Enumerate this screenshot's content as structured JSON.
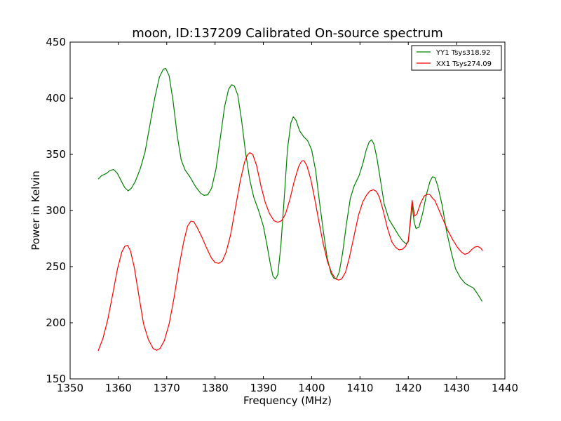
{
  "chart_data": {
    "type": "line",
    "title": "moon, ID:137209 Calibrated On-source spectrum",
    "xlabel": "Frequency (MHz)",
    "ylabel": "Power in Kelvin",
    "xlim": [
      1350,
      1440
    ],
    "ylim": [
      150,
      450
    ],
    "xticks": [
      1350,
      1360,
      1370,
      1380,
      1390,
      1400,
      1410,
      1420,
      1430,
      1440
    ],
    "yticks": [
      150,
      200,
      250,
      300,
      350,
      400,
      450
    ],
    "grid": false,
    "legend_position": "top-right",
    "series": [
      {
        "name": "YY1 Tsys318.92",
        "color": "#008000",
        "points": [
          [
            1355.8,
            328
          ],
          [
            1356.5,
            331
          ],
          [
            1357.5,
            333
          ],
          [
            1358.2,
            335.5
          ],
          [
            1359.0,
            336.5
          ],
          [
            1359.8,
            333
          ],
          [
            1360.5,
            327
          ],
          [
            1361.3,
            320.5
          ],
          [
            1362.0,
            317.5
          ],
          [
            1362.7,
            320
          ],
          [
            1363.5,
            326
          ],
          [
            1364.5,
            337
          ],
          [
            1365.5,
            352
          ],
          [
            1366.5,
            376
          ],
          [
            1367.5,
            400
          ],
          [
            1368.5,
            419
          ],
          [
            1369.3,
            426
          ],
          [
            1369.8,
            426.5
          ],
          [
            1370.5,
            420
          ],
          [
            1371.3,
            398
          ],
          [
            1372.2,
            366
          ],
          [
            1373.0,
            345
          ],
          [
            1373.8,
            336
          ],
          [
            1374.8,
            330
          ],
          [
            1376.0,
            321
          ],
          [
            1377.0,
            315.5
          ],
          [
            1377.7,
            313.5
          ],
          [
            1378.5,
            314
          ],
          [
            1379.3,
            320
          ],
          [
            1380.2,
            337
          ],
          [
            1381.2,
            368
          ],
          [
            1382.0,
            393
          ],
          [
            1382.8,
            408
          ],
          [
            1383.4,
            412
          ],
          [
            1384.0,
            411
          ],
          [
            1384.7,
            403
          ],
          [
            1385.5,
            380
          ],
          [
            1386.3,
            352
          ],
          [
            1387.2,
            327
          ],
          [
            1388.0,
            312
          ],
          [
            1389.0,
            300
          ],
          [
            1390.0,
            286
          ],
          [
            1390.8,
            268
          ],
          [
            1391.5,
            251
          ],
          [
            1392.0,
            241.5
          ],
          [
            1392.5,
            239
          ],
          [
            1393.0,
            243
          ],
          [
            1393.6,
            268
          ],
          [
            1394.3,
            310
          ],
          [
            1395.0,
            355
          ],
          [
            1395.7,
            378
          ],
          [
            1396.2,
            383.5
          ],
          [
            1396.8,
            380
          ],
          [
            1397.5,
            371
          ],
          [
            1398.3,
            366
          ],
          [
            1399.2,
            362
          ],
          [
            1400.0,
            354
          ],
          [
            1400.8,
            336
          ],
          [
            1401.6,
            308
          ],
          [
            1402.4,
            282
          ],
          [
            1403.2,
            258
          ],
          [
            1404.0,
            244
          ],
          [
            1404.6,
            239.5
          ],
          [
            1405.1,
            239
          ],
          [
            1405.7,
            245
          ],
          [
            1406.4,
            262
          ],
          [
            1407.2,
            288
          ],
          [
            1408.0,
            311
          ],
          [
            1408.8,
            322
          ],
          [
            1409.8,
            331
          ],
          [
            1410.6,
            342
          ],
          [
            1411.3,
            354
          ],
          [
            1411.9,
            361
          ],
          [
            1412.4,
            363
          ],
          [
            1412.9,
            359
          ],
          [
            1413.5,
            347
          ],
          [
            1414.2,
            328
          ],
          [
            1415.0,
            306
          ],
          [
            1416.0,
            292
          ],
          [
            1417.0,
            285
          ],
          [
            1418.0,
            278
          ],
          [
            1418.8,
            273
          ],
          [
            1419.5,
            270.5
          ],
          [
            1420.0,
            272
          ],
          [
            1420.4,
            288
          ],
          [
            1420.8,
            305
          ],
          [
            1421.2,
            290
          ],
          [
            1421.6,
            284
          ],
          [
            1422.2,
            285
          ],
          [
            1423.0,
            298
          ],
          [
            1423.8,
            315
          ],
          [
            1424.5,
            326
          ],
          [
            1425.0,
            330
          ],
          [
            1425.5,
            329.5
          ],
          [
            1426.1,
            322
          ],
          [
            1427.0,
            305
          ],
          [
            1428.0,
            280
          ],
          [
            1429.0,
            261
          ],
          [
            1429.8,
            248
          ],
          [
            1430.8,
            240
          ],
          [
            1431.8,
            235
          ],
          [
            1432.8,
            232.5
          ],
          [
            1433.5,
            231
          ],
          [
            1434.3,
            226
          ],
          [
            1435.3,
            219
          ]
        ]
      },
      {
        "name": "XX1 Tsys274.09",
        "color": "#ff0000",
        "points": [
          [
            1355.8,
            175
          ],
          [
            1356.8,
            186
          ],
          [
            1357.8,
            203
          ],
          [
            1358.8,
            225
          ],
          [
            1359.8,
            248
          ],
          [
            1360.7,
            263
          ],
          [
            1361.3,
            268
          ],
          [
            1361.9,
            269
          ],
          [
            1362.5,
            264
          ],
          [
            1363.3,
            249
          ],
          [
            1364.2,
            225
          ],
          [
            1365.2,
            199
          ],
          [
            1366.2,
            185
          ],
          [
            1367.2,
            177
          ],
          [
            1367.9,
            175.5
          ],
          [
            1368.6,
            177
          ],
          [
            1369.5,
            184
          ],
          [
            1370.5,
            199
          ],
          [
            1371.5,
            222
          ],
          [
            1372.5,
            249
          ],
          [
            1373.5,
            272
          ],
          [
            1374.3,
            286
          ],
          [
            1375.0,
            290.5
          ],
          [
            1375.6,
            290
          ],
          [
            1376.4,
            284
          ],
          [
            1377.3,
            276
          ],
          [
            1378.2,
            267
          ],
          [
            1379.2,
            258
          ],
          [
            1380.0,
            253.5
          ],
          [
            1380.8,
            253
          ],
          [
            1381.5,
            255
          ],
          [
            1382.3,
            263
          ],
          [
            1383.2,
            278
          ],
          [
            1384.2,
            302
          ],
          [
            1385.2,
            326
          ],
          [
            1386.1,
            343
          ],
          [
            1386.7,
            349.5
          ],
          [
            1387.2,
            351.5
          ],
          [
            1387.8,
            350
          ],
          [
            1388.6,
            340
          ],
          [
            1389.5,
            322
          ],
          [
            1390.4,
            307
          ],
          [
            1391.3,
            297
          ],
          [
            1392.2,
            291
          ],
          [
            1393.0,
            289.5
          ],
          [
            1393.8,
            291
          ],
          [
            1394.6,
            297
          ],
          [
            1395.5,
            310
          ],
          [
            1396.4,
            326
          ],
          [
            1397.3,
            339
          ],
          [
            1397.9,
            344
          ],
          [
            1398.4,
            344.5
          ],
          [
            1399.0,
            340
          ],
          [
            1399.8,
            328
          ],
          [
            1400.6,
            311
          ],
          [
            1401.5,
            290
          ],
          [
            1402.4,
            270
          ],
          [
            1403.3,
            254
          ],
          [
            1404.2,
            244
          ],
          [
            1405.0,
            239
          ],
          [
            1405.6,
            238
          ],
          [
            1406.2,
            239
          ],
          [
            1407.0,
            245
          ],
          [
            1407.8,
            258
          ],
          [
            1408.8,
            278
          ],
          [
            1409.7,
            296
          ],
          [
            1410.6,
            308
          ],
          [
            1411.4,
            314
          ],
          [
            1412.1,
            317.5
          ],
          [
            1412.8,
            318.5
          ],
          [
            1413.4,
            317
          ],
          [
            1414.0,
            312
          ],
          [
            1414.8,
            300
          ],
          [
            1415.7,
            284
          ],
          [
            1416.6,
            272
          ],
          [
            1417.4,
            267
          ],
          [
            1418.1,
            265
          ],
          [
            1418.8,
            265.5
          ],
          [
            1419.4,
            268
          ],
          [
            1420.0,
            273
          ],
          [
            1420.4,
            290
          ],
          [
            1420.8,
            309
          ],
          [
            1421.3,
            295
          ],
          [
            1421.8,
            297
          ],
          [
            1422.5,
            306
          ],
          [
            1423.3,
            313
          ],
          [
            1424.0,
            314.5
          ],
          [
            1424.5,
            314
          ],
          [
            1425.0,
            311
          ],
          [
            1425.5,
            309
          ],
          [
            1426.2,
            302
          ],
          [
            1427.2,
            292
          ],
          [
            1428.2,
            282
          ],
          [
            1429.2,
            274
          ],
          [
            1430.2,
            267
          ],
          [
            1431.0,
            263
          ],
          [
            1431.7,
            261
          ],
          [
            1432.4,
            262
          ],
          [
            1433.2,
            265.5
          ],
          [
            1433.8,
            267.5
          ],
          [
            1434.4,
            268
          ],
          [
            1435.0,
            266.5
          ],
          [
            1435.4,
            264
          ]
        ]
      }
    ]
  }
}
